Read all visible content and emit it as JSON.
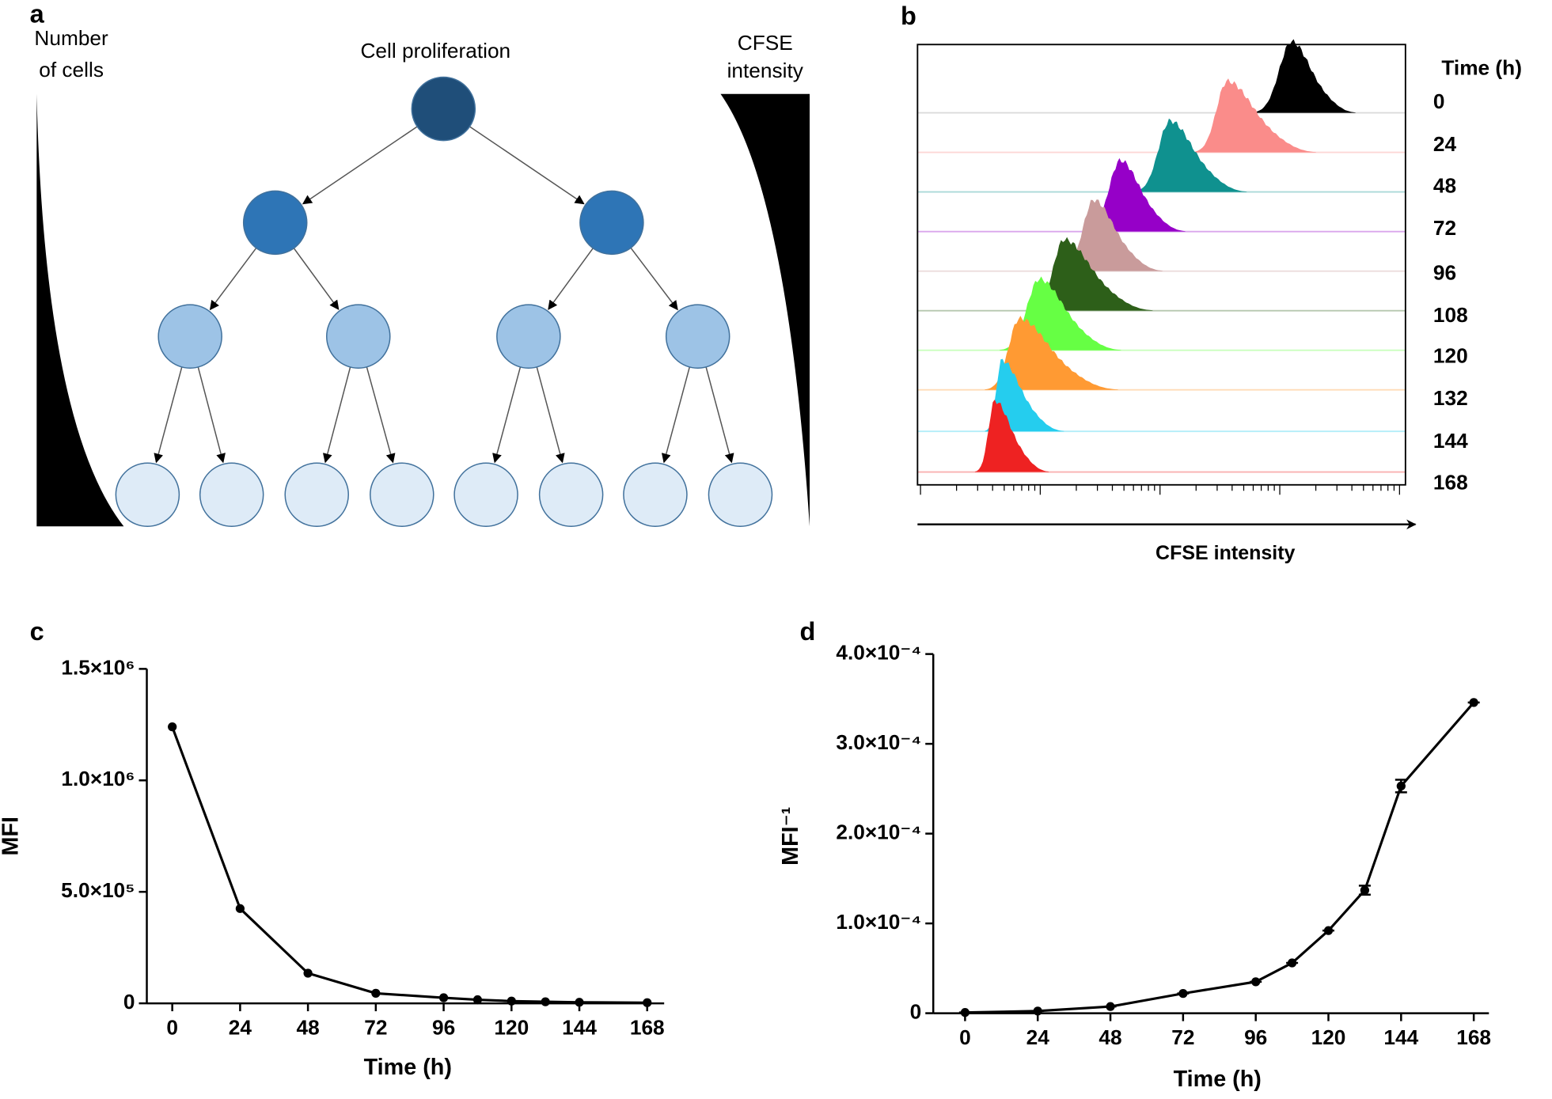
{
  "panel_a": {
    "letter": "a",
    "title": "Cell proliferation",
    "left_label": [
      "Number",
      "of cells"
    ],
    "right_label": [
      "CFSE",
      "intensity"
    ]
  },
  "panel_b": {
    "letter": "b",
    "legend_title": "Time (h)",
    "labels": [
      "0",
      "24",
      "48",
      "72",
      "96",
      "108",
      "120",
      "132",
      "144",
      "168"
    ],
    "colors": [
      "#000000",
      "#fa8c8a",
      "#0f918f",
      "#9600c8",
      "#c99b9b",
      "#2d5f19",
      "#66ff44",
      "#ff9a33",
      "#25cdee",
      "#ee2222"
    ],
    "axis_label": "CFSE intensity"
  },
  "chart_data": [
    {
      "type": "line",
      "letter": "c",
      "x_label": "Time (h)",
      "y_label": "MFI",
      "color": "#000000",
      "x": [
        0,
        24,
        48,
        72,
        96,
        108,
        120,
        132,
        144,
        168
      ],
      "values": [
        1240000,
        425000,
        135000,
        45000,
        25000,
        16000,
        10000,
        7000,
        4500,
        2900
      ],
      "xlim": [
        -9,
        174
      ],
      "xticks": [
        0,
        24,
        48,
        72,
        96,
        120,
        144,
        168
      ],
      "ylim": [
        0,
        1500000
      ],
      "yticks": [
        0,
        {
          "value": 500000,
          "label": "5.0×10⁵"
        },
        {
          "value": 1000000,
          "label": "1.0×10⁶"
        },
        {
          "value": 1500000,
          "label": "1.5×10⁶"
        }
      ]
    },
    {
      "type": "line",
      "letter": "d",
      "x_label": "Time (h)",
      "y_label": "MFI⁻¹",
      "color": "#000000",
      "x": [
        0,
        24,
        48,
        72,
        96,
        108,
        120,
        132,
        144,
        168
      ],
      "values": [
        8e-07,
        2.4e-06,
        7.4e-06,
        2.2e-05,
        3.5e-05,
        5.6e-05,
        9.2e-05,
        0.000137,
        0.000253,
        0.000346
      ],
      "errors": [
        0,
        0,
        0,
        0,
        0,
        0,
        0,
        5e-06,
        7e-06,
        0
      ],
      "xlim": [
        -10.5,
        173
      ],
      "xticks": [
        0,
        24,
        48,
        72,
        96,
        120,
        144,
        168
      ],
      "ylim": [
        0,
        0.0004
      ],
      "yticks": [
        0,
        {
          "value": 0.0001,
          "label": "1.0×10⁻⁴"
        },
        {
          "value": 0.0002,
          "label": "2.0×10⁻⁴"
        },
        {
          "value": 0.0003,
          "label": "3.0×10⁻⁴"
        },
        {
          "value": 0.0004,
          "label": "4.0×10⁻⁴"
        }
      ]
    }
  ]
}
